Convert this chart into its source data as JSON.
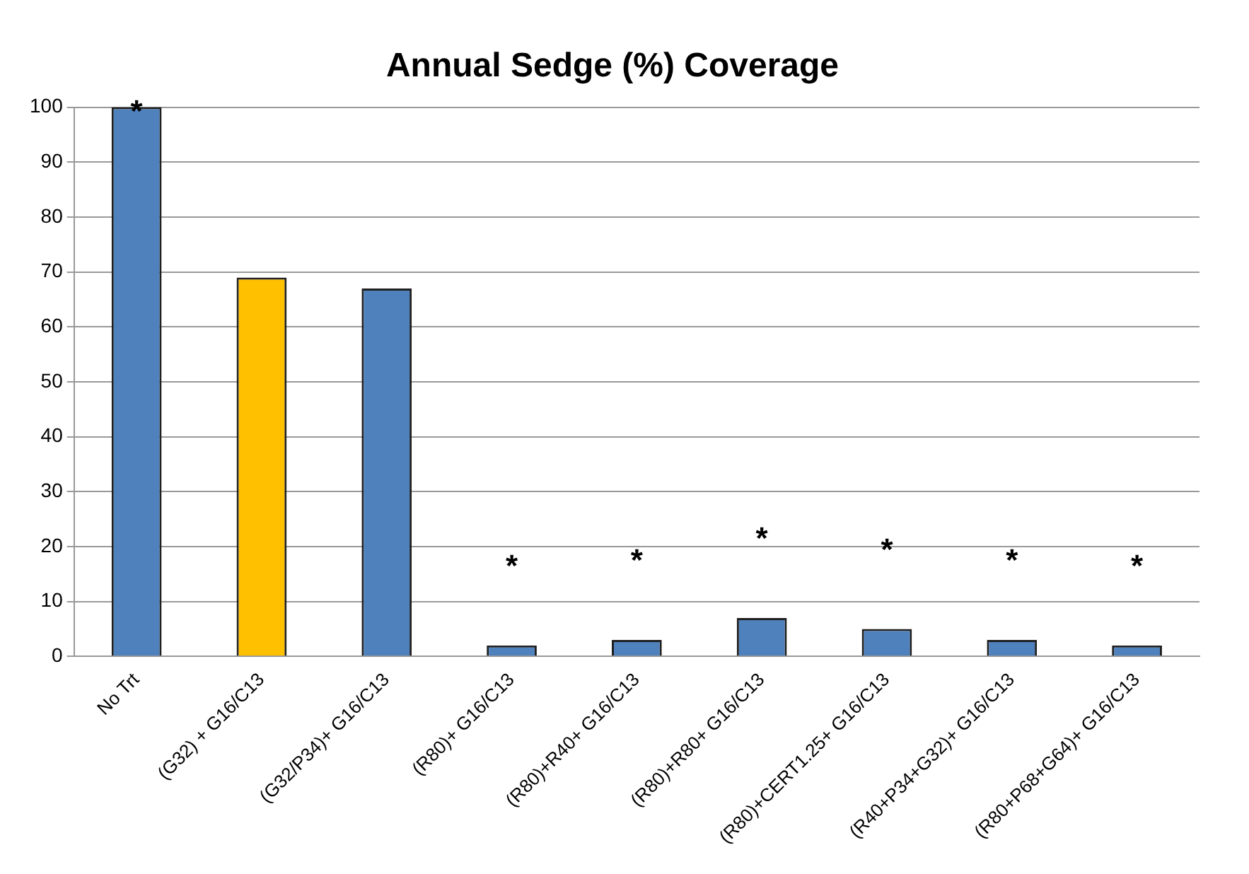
{
  "chart_data": {
    "type": "bar",
    "title": "Annual Sedge (%) Coverage",
    "categories": [
      "No Trt",
      "(G32) + G16/C13",
      "(G32/P34)+ G16/C13",
      "(R80)+ G16/C13",
      "(R80)+R40+ G16/C13",
      "(R80)+R80+ G16/C13",
      "(R80)+CERT1.25+ G16/C13",
      "(R40+P34+G32)+ G16/C13",
      "(R80+P68+G64)+ G16/C13"
    ],
    "values": [
      100,
      69,
      67,
      2,
      3,
      7,
      5,
      3,
      2
    ],
    "colors": [
      "#4f81bd",
      "#ffc000",
      "#4f81bd",
      "#4f81bd",
      "#4f81bd",
      "#4f81bd",
      "#4f81bd",
      "#4f81bd",
      "#4f81bd"
    ],
    "ylim": [
      0,
      100
    ],
    "yticks": [
      0,
      10,
      20,
      30,
      40,
      50,
      60,
      70,
      80,
      90,
      100
    ],
    "grid": "y",
    "legend": false,
    "annotations": [
      {
        "text": "*",
        "x": "No Trt",
        "y": 100
      },
      {
        "text": "*",
        "x": "(R80)+ G16/C13",
        "y": 2
      },
      {
        "text": "*",
        "x": "(R80)+R40+ G16/C13",
        "y": 3
      },
      {
        "text": "*",
        "x": "(R80)+R80+ G16/C13",
        "y": 7
      },
      {
        "text": "*",
        "x": "(R80)+CERT1.25+ G16/C13",
        "y": 5
      },
      {
        "text": "*",
        "x": "(R40+P34+G32)+ G16/C13",
        "y": 3
      },
      {
        "text": "*",
        "x": "(R80+P68+G64)+ G16/C13",
        "y": 2
      }
    ]
  }
}
